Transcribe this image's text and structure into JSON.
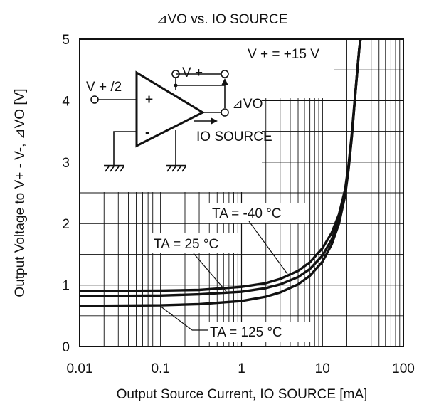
{
  "chart_data": {
    "type": "line",
    "title": "⊿VO vs. IO SOURCE",
    "xlabel": "Output Source Current, IO SOURCE [mA]",
    "ylabel": "Output Voltage to V+ - V-, ⊿VO [V]",
    "x_scale": "log",
    "xlim": [
      0.01,
      100
    ],
    "ylim": [
      0,
      5
    ],
    "grid": true,
    "x_ticks": [
      "0.01",
      "0.1",
      "1",
      "10",
      "100"
    ],
    "y_ticks": [
      "0",
      "1",
      "2",
      "3",
      "4",
      "5"
    ],
    "series": [
      {
        "name": "TA = -40 °C",
        "x": [
          0.01,
          0.1,
          0.3,
          1,
          2,
          3,
          5,
          7,
          10,
          13,
          16,
          19,
          21,
          23,
          25,
          27,
          28.5,
          29.5
        ],
        "y": [
          0.9,
          0.91,
          0.92,
          0.97,
          1.03,
          1.1,
          1.23,
          1.37,
          1.6,
          1.85,
          2.15,
          2.55,
          2.95,
          3.45,
          4.0,
          4.5,
          4.85,
          5.0
        ]
      },
      {
        "name": "TA = 25 °C",
        "x": [
          0.01,
          0.1,
          0.3,
          1,
          2,
          3,
          5,
          7,
          10,
          13,
          16,
          19,
          21,
          23,
          25,
          27,
          28.5,
          29.5
        ],
        "y": [
          0.82,
          0.83,
          0.85,
          0.89,
          0.95,
          1.01,
          1.13,
          1.26,
          1.48,
          1.74,
          2.06,
          2.48,
          2.9,
          3.4,
          3.98,
          4.5,
          4.85,
          5.0
        ]
      },
      {
        "name": "TA = 125 °C",
        "x": [
          0.01,
          0.1,
          0.3,
          1,
          2,
          3,
          5,
          7,
          10,
          13,
          16,
          19,
          21,
          23,
          25,
          27,
          28.5,
          29.5
        ],
        "y": [
          0.66,
          0.67,
          0.69,
          0.74,
          0.81,
          0.88,
          1.01,
          1.15,
          1.38,
          1.66,
          2.0,
          2.45,
          2.88,
          3.4,
          3.98,
          4.5,
          4.85,
          5.0
        ]
      }
    ],
    "annotations": {
      "supply": "V + = +15 V",
      "circuit": {
        "input": "V + /2",
        "supply_pin": "V +",
        "output": "⊿VO",
        "current": "IO SOURCE",
        "plus": "+",
        "minus": "-"
      }
    }
  }
}
